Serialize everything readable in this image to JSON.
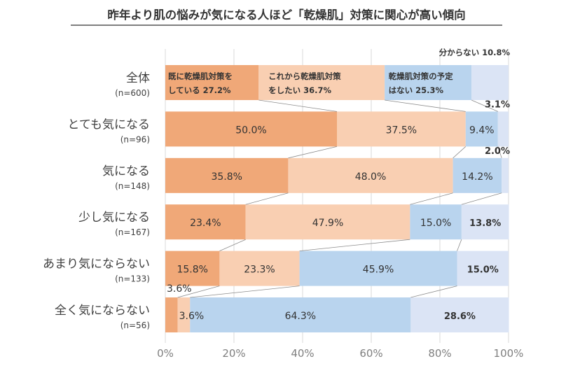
{
  "chart_data": {
    "type": "stacked-bar-horizontal",
    "title": "昨年より肌の悩みが気になる人ほど「乾燥肌」対策に関心が高い傾向",
    "xlim": [
      0,
      100
    ],
    "x_ticks": [
      "0%",
      "20%",
      "40%",
      "60%",
      "80%",
      "100%"
    ],
    "grid": true,
    "legend": "inside-top-bar",
    "series": [
      {
        "name": "既に乾燥肌対策をしている",
        "color": "#f0a878"
      },
      {
        "name": "これから乾燥肌対策をしたい",
        "color": "#f9cfb2"
      },
      {
        "name": "乾燥肌対策の予定はない",
        "color": "#b9d4ee"
      },
      {
        "name": "分からない",
        "color": "#dbe4f5"
      }
    ],
    "segment_legend": [
      {
        "line1": "既に乾燥肌対策を",
        "line2": "している 27.2%"
      },
      {
        "line1": "これから乾燥肌対策",
        "line2": "をしたい 36.7%"
      },
      {
        "line1": "乾燥肌対策の予定",
        "line2": "はない 25.3%"
      },
      {
        "line1": "分からない 10.8%",
        "line2": ""
      }
    ],
    "categories": [
      {
        "label": "全体",
        "n": "(n=600)",
        "values": [
          27.2,
          36.7,
          25.3,
          10.8
        ],
        "labels": [
          "",
          "",
          "",
          ""
        ]
      },
      {
        "label": "とても気になる",
        "n": "(n=96)",
        "values": [
          50.0,
          37.5,
          9.4,
          3.1
        ],
        "labels": [
          "50.0%",
          "37.5%",
          "9.4%",
          "3.1%"
        ]
      },
      {
        "label": "気になる",
        "n": "(n=148)",
        "values": [
          35.8,
          48.0,
          14.2,
          2.0
        ],
        "labels": [
          "35.8%",
          "48.0%",
          "14.2%",
          "2.0%"
        ]
      },
      {
        "label": "少し気になる",
        "n": "(n=167)",
        "values": [
          23.4,
          47.9,
          15.0,
          13.8
        ],
        "labels": [
          "23.4%",
          "47.9%",
          "15.0%",
          "13.8%"
        ]
      },
      {
        "label": "あまり気にならない",
        "n": "(n=133)",
        "values": [
          15.8,
          23.3,
          45.9,
          15.0
        ],
        "labels": [
          "15.8%",
          "23.3%",
          "45.9%",
          "15.0%"
        ]
      },
      {
        "label": "全く気にならない",
        "n": "(n=56)",
        "values": [
          3.6,
          3.6,
          64.3,
          28.6
        ],
        "labels": [
          "3.6%",
          "3.6%",
          "64.3%",
          "28.6%"
        ]
      }
    ]
  }
}
